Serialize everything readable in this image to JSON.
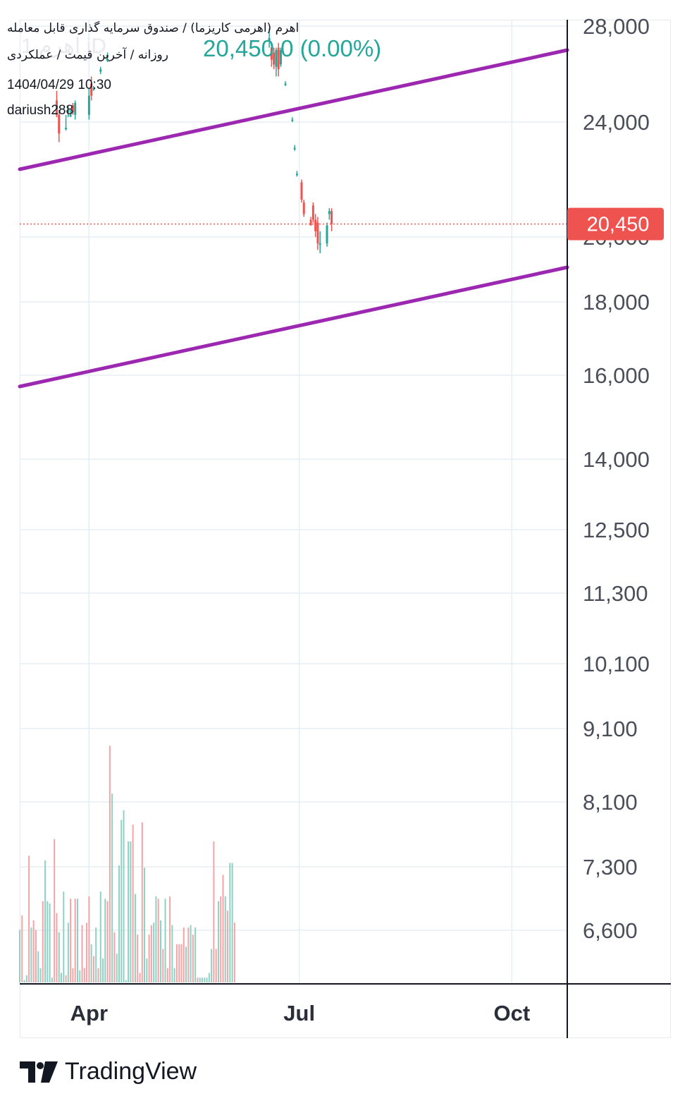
{
  "header": {
    "title": "اهرم (اهرمی کاریزما) / صندوق سرمایه گذاری قابل معامله",
    "subtitle": "روزانه / آخرین قیمت / عملکردی",
    "datetime": "1404/04/29 10:30",
    "author": "dariush288",
    "last_price_text": "20,450 0 (0.00%)",
    "watermark_text": "1 اهرم iD"
  },
  "brand": {
    "name": "TradingView",
    "logo_icon": "tradingview-logo-icon"
  },
  "colors": {
    "up": "#26a69a",
    "down": "#ef5350",
    "vol_up": "#8fd1c3",
    "vol_down": "#f4a4a6",
    "channel": "#9c27b0",
    "price_line": "#ef5350",
    "grid": "#e6edf3",
    "axis_text": "#4a4e59"
  },
  "chart_data": {
    "type": "candlestick",
    "symbol": "اهرم",
    "interval": "روزانه",
    "scale": "log",
    "y_axis": {
      "ticks": [
        28000,
        24000,
        20000,
        18000,
        16000,
        14000,
        12500,
        11300,
        10100,
        9100,
        8100,
        7300,
        6600
      ],
      "tick_labels": [
        "28,000",
        "24,000",
        "20,000",
        "18,000",
        "16,000",
        "14,000",
        "12,500",
        "11,300",
        "10,100",
        "9,100",
        "8,100",
        "7,300",
        "6,600"
      ]
    },
    "x_axis": {
      "tick_labels": [
        "Apr",
        "Jul",
        "Oct"
      ],
      "tick_dates": [
        "2025-04-01",
        "2025-07-01",
        "2025-10-01"
      ],
      "range": [
        "2025-03-02",
        "2025-10-25"
      ]
    },
    "last_price": 20450,
    "last_price_label": "20,450",
    "candles": [
      {
        "date": "2025-03-18",
        "open": 24900,
        "high": 25300,
        "low": 24200,
        "close": 24300
      },
      {
        "date": "2025-03-19",
        "open": 24300,
        "high": 24500,
        "low": 23300,
        "close": 23600
      },
      {
        "date": "2025-03-22",
        "open": 23800,
        "high": 24300,
        "low": 23700,
        "close": 23800
      },
      {
        "date": "2025-03-23",
        "open": 24400,
        "high": 24700,
        "low": 24200,
        "close": 24500
      },
      {
        "date": "2025-03-24",
        "open": 24300,
        "high": 24500,
        "low": 24200,
        "close": 24300
      },
      {
        "date": "2025-03-25",
        "open": 24700,
        "high": 24800,
        "low": 24300,
        "close": 24400
      },
      {
        "date": "2025-03-26",
        "open": 24300,
        "high": 24900,
        "low": 24100,
        "close": 24800
      },
      {
        "date": "2025-04-01",
        "open": 24300,
        "high": 25400,
        "low": 24100,
        "close": 25100
      },
      {
        "date": "2025-04-02",
        "open": 25600,
        "high": 25900,
        "low": 24900,
        "close": 25100
      },
      {
        "date": "2025-04-03",
        "open": 25400,
        "high": 25500,
        "low": 25300,
        "close": 25400
      },
      {
        "date": "2025-04-06",
        "open": 26100,
        "high": 26300,
        "low": 26000,
        "close": 26200
      },
      {
        "date": "2025-04-09",
        "open": 26700,
        "high": 26900,
        "low": 26500,
        "close": 26800
      },
      {
        "date": "2025-06-18",
        "open": 27400,
        "high": 27900,
        "low": 27100,
        "close": 27500
      },
      {
        "date": "2025-06-19",
        "open": 27100,
        "high": 27300,
        "low": 26300,
        "close": 26600
      },
      {
        "date": "2025-06-20",
        "open": 26900,
        "high": 27100,
        "low": 26200,
        "close": 26400
      },
      {
        "date": "2025-06-21",
        "open": 26300,
        "high": 27100,
        "low": 25900,
        "close": 27000
      },
      {
        "date": "2025-06-22",
        "open": 27100,
        "high": 27300,
        "low": 25900,
        "close": 26200
      },
      {
        "date": "2025-06-23",
        "open": 26400,
        "high": 27100,
        "low": 26300,
        "close": 27000
      },
      {
        "date": "2025-06-25",
        "open": 25600,
        "high": 25700,
        "low": 25500,
        "close": 25600
      },
      {
        "date": "2025-06-28",
        "open": 24100,
        "high": 24200,
        "low": 24000,
        "close": 24100
      },
      {
        "date": "2025-06-29",
        "open": 23100,
        "high": 23200,
        "low": 23000,
        "close": 23100
      },
      {
        "date": "2025-06-30",
        "open": 22200,
        "high": 22300,
        "low": 22100,
        "close": 22200
      },
      {
        "date": "2025-07-02",
        "open": 21900,
        "high": 22000,
        "low": 21200,
        "close": 21300
      },
      {
        "date": "2025-07-03",
        "open": 21200,
        "high": 21300,
        "low": 20700,
        "close": 20800
      },
      {
        "date": "2025-07-06",
        "open": 20600,
        "high": 20700,
        "low": 20400,
        "close": 20400
      },
      {
        "date": "2025-07-07",
        "open": 21100,
        "high": 21200,
        "low": 20500,
        "close": 20600
      },
      {
        "date": "2025-07-08",
        "open": 20600,
        "high": 20800,
        "low": 20000,
        "close": 20200
      },
      {
        "date": "2025-07-09",
        "open": 20500,
        "high": 20700,
        "low": 19600,
        "close": 19800
      },
      {
        "date": "2025-07-10",
        "open": 19800,
        "high": 20200,
        "low": 19500,
        "close": 19800
      },
      {
        "date": "2025-07-13",
        "open": 19800,
        "high": 20500,
        "low": 19700,
        "close": 20400
      },
      {
        "date": "2025-07-14",
        "open": 20800,
        "high": 21000,
        "low": 20600,
        "close": 20900
      },
      {
        "date": "2025-07-15",
        "open": 20900,
        "high": 21000,
        "low": 20200,
        "close": 20450
      }
    ],
    "volume_bars": [
      {
        "date": "2025-03-02",
        "rel": 0.22,
        "dir": "up"
      },
      {
        "date": "2025-03-03",
        "rel": 0.28,
        "dir": "down"
      },
      {
        "date": "2025-03-04",
        "rel": 0.01,
        "dir": "up"
      },
      {
        "date": "2025-03-05",
        "rel": 0.03,
        "dir": "up"
      },
      {
        "date": "2025-03-06",
        "rel": 0.53,
        "dir": "down"
      },
      {
        "date": "2025-03-07",
        "rel": 0.23,
        "dir": "up"
      },
      {
        "date": "2025-03-08",
        "rel": 0.26,
        "dir": "down"
      },
      {
        "date": "2025-03-09",
        "rel": 0.22,
        "dir": "down"
      },
      {
        "date": "2025-03-10",
        "rel": 0.13,
        "dir": "up"
      },
      {
        "date": "2025-03-11",
        "rel": 0.06,
        "dir": "up"
      },
      {
        "date": "2025-03-12",
        "rel": 0.34,
        "dir": "down"
      },
      {
        "date": "2025-03-13",
        "rel": 0.51,
        "dir": "up"
      },
      {
        "date": "2025-03-14",
        "rel": 0.34,
        "dir": "up"
      },
      {
        "date": "2025-03-15",
        "rel": 0.33,
        "dir": "up"
      },
      {
        "date": "2025-03-16",
        "rel": 0.02,
        "dir": "up"
      },
      {
        "date": "2025-03-17",
        "rel": 0.6,
        "dir": "down"
      },
      {
        "date": "2025-03-18",
        "rel": 0.29,
        "dir": "down"
      },
      {
        "date": "2025-03-19",
        "rel": 0.21,
        "dir": "up"
      },
      {
        "date": "2025-03-20",
        "rel": 0.04,
        "dir": "up"
      },
      {
        "date": "2025-03-21",
        "rel": 0.38,
        "dir": "up"
      },
      {
        "date": "2025-03-22",
        "rel": 0.03,
        "dir": "down"
      },
      {
        "date": "2025-03-23",
        "rel": 0.25,
        "dir": "up"
      },
      {
        "date": "2025-03-24",
        "rel": 0.35,
        "dir": "down"
      },
      {
        "date": "2025-03-25",
        "rel": 0.06,
        "dir": "down"
      },
      {
        "date": "2025-03-26",
        "rel": 0.35,
        "dir": "down"
      },
      {
        "date": "2025-03-27",
        "rel": 0.35,
        "dir": "up"
      },
      {
        "date": "2025-03-28",
        "rel": 0.05,
        "dir": "up"
      },
      {
        "date": "2025-03-29",
        "rel": 0.24,
        "dir": "down"
      },
      {
        "date": "2025-03-30",
        "rel": 0.06,
        "dir": "down"
      },
      {
        "date": "2025-03-31",
        "rel": 0.25,
        "dir": "down"
      },
      {
        "date": "2025-04-01",
        "rel": 0.36,
        "dir": "down"
      },
      {
        "date": "2025-04-02",
        "rel": 0.16,
        "dir": "up"
      },
      {
        "date": "2025-04-03",
        "rel": 0.11,
        "dir": "down"
      },
      {
        "date": "2025-04-04",
        "rel": 0.23,
        "dir": "up"
      },
      {
        "date": "2025-04-05",
        "rel": 0.06,
        "dir": "down"
      },
      {
        "date": "2025-04-06",
        "rel": 0.38,
        "dir": "up"
      },
      {
        "date": "2025-04-07",
        "rel": 0.1,
        "dir": "up"
      },
      {
        "date": "2025-04-08",
        "rel": 0.35,
        "dir": "up"
      },
      {
        "date": "2025-04-09",
        "rel": 0.34,
        "dir": "down"
      },
      {
        "date": "2025-04-10",
        "rel": 0.99,
        "dir": "down"
      },
      {
        "date": "2025-04-11",
        "rel": 0.79,
        "dir": "up"
      },
      {
        "date": "2025-04-12",
        "rel": 0.21,
        "dir": "down"
      },
      {
        "date": "2025-04-13",
        "rel": 0.12,
        "dir": "up"
      },
      {
        "date": "2025-04-14",
        "rel": 0.49,
        "dir": "up"
      },
      {
        "date": "2025-04-15",
        "rel": 0.68,
        "dir": "up"
      },
      {
        "date": "2025-04-16",
        "rel": 0.72,
        "dir": "up"
      },
      {
        "date": "2025-04-17",
        "rel": 0.01,
        "dir": "up"
      },
      {
        "date": "2025-04-18",
        "rel": 0.59,
        "dir": "up"
      },
      {
        "date": "2025-04-19",
        "rel": 0.59,
        "dir": "up"
      },
      {
        "date": "2025-04-20",
        "rel": 0.66,
        "dir": "down"
      },
      {
        "date": "2025-04-21",
        "rel": 0.37,
        "dir": "up"
      },
      {
        "date": "2025-04-22",
        "rel": 0.2,
        "dir": "down"
      },
      {
        "date": "2025-04-23",
        "rel": 0.04,
        "dir": "down"
      },
      {
        "date": "2025-04-24",
        "rel": 0.67,
        "dir": "down"
      },
      {
        "date": "2025-04-25",
        "rel": 0.48,
        "dir": "up"
      },
      {
        "date": "2025-04-26",
        "rel": 0.1,
        "dir": "up"
      },
      {
        "date": "2025-04-27",
        "rel": 0.2,
        "dir": "down"
      },
      {
        "date": "2025-04-28",
        "rel": 0.24,
        "dir": "down"
      },
      {
        "date": "2025-04-29",
        "rel": 0.25,
        "dir": "up"
      },
      {
        "date": "2025-04-30",
        "rel": 0.36,
        "dir": "up"
      },
      {
        "date": "2025-05-01",
        "rel": 0.35,
        "dir": "down"
      },
      {
        "date": "2025-05-02",
        "rel": 0.26,
        "dir": "up"
      },
      {
        "date": "2025-05-03",
        "rel": 0.14,
        "dir": "down"
      },
      {
        "date": "2025-05-04",
        "rel": 0.35,
        "dir": "up"
      },
      {
        "date": "2025-05-05",
        "rel": 0.06,
        "dir": "down"
      },
      {
        "date": "2025-05-06",
        "rel": 0.36,
        "dir": "down"
      },
      {
        "date": "2025-05-07",
        "rel": 0.24,
        "dir": "up"
      },
      {
        "date": "2025-05-08",
        "rel": 0.06,
        "dir": "up"
      },
      {
        "date": "2025-05-09",
        "rel": 0.16,
        "dir": "down"
      },
      {
        "date": "2025-05-10",
        "rel": 0.16,
        "dir": "down"
      },
      {
        "date": "2025-05-11",
        "rel": 0.16,
        "dir": "down"
      },
      {
        "date": "2025-05-12",
        "rel": 0.23,
        "dir": "down"
      },
      {
        "date": "2025-05-13",
        "rel": 0.15,
        "dir": "up"
      },
      {
        "date": "2025-05-14",
        "rel": 0.23,
        "dir": "down"
      },
      {
        "date": "2025-05-15",
        "rel": 0.24,
        "dir": "up"
      },
      {
        "date": "2025-05-16",
        "rel": 0.2,
        "dir": "down"
      },
      {
        "date": "2025-05-17",
        "rel": 0.23,
        "dir": "up"
      },
      {
        "date": "2025-05-18",
        "rel": 0.02,
        "dir": "down"
      },
      {
        "date": "2025-05-19",
        "rel": 0.02,
        "dir": "up"
      },
      {
        "date": "2025-05-20",
        "rel": 0.02,
        "dir": "up"
      },
      {
        "date": "2025-05-21",
        "rel": 0.02,
        "dir": "up"
      },
      {
        "date": "2025-05-22",
        "rel": 0.02,
        "dir": "up"
      },
      {
        "date": "2025-05-23",
        "rel": 0.04,
        "dir": "up"
      },
      {
        "date": "2025-05-24",
        "rel": 0.14,
        "dir": "up"
      },
      {
        "date": "2025-05-25",
        "rel": 0.59,
        "dir": "down"
      },
      {
        "date": "2025-05-26",
        "rel": 0.14,
        "dir": "down"
      },
      {
        "date": "2025-05-27",
        "rel": 0.34,
        "dir": "up"
      },
      {
        "date": "2025-05-28",
        "rel": 0.36,
        "dir": "down"
      },
      {
        "date": "2025-05-29",
        "rel": 0.45,
        "dir": "down"
      },
      {
        "date": "2025-05-30",
        "rel": 0.36,
        "dir": "up"
      },
      {
        "date": "2025-05-31",
        "rel": 0.3,
        "dir": "down"
      },
      {
        "date": "2025-06-01",
        "rel": 0.5,
        "dir": "up"
      },
      {
        "date": "2025-06-02",
        "rel": 0.5,
        "dir": "up"
      },
      {
        "date": "2025-06-03",
        "rel": 0.25,
        "dir": "down"
      }
    ]
  }
}
